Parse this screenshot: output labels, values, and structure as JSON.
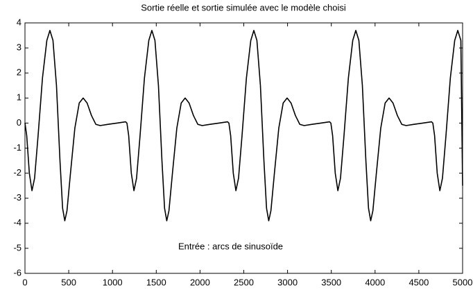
{
  "chart_data": {
    "type": "line",
    "title": "Sortie réelle et sortie simulée avec le modèle choisi",
    "annotation": "Entrée : arcs de sinusoïde",
    "x": [
      0,
      20,
      50,
      80,
      110,
      150,
      200,
      250,
      285,
      320,
      360,
      400,
      430,
      455,
      480,
      520,
      570,
      620,
      665,
      710,
      760,
      810,
      860,
      950,
      1050,
      1150,
      1165,
      1185,
      1215,
      1245,
      1275,
      1315,
      1365,
      1415,
      1450,
      1485,
      1525,
      1565,
      1595,
      1620,
      1645,
      1685,
      1735,
      1785,
      1830,
      1875,
      1925,
      1975,
      2025,
      2115,
      2215,
      2315,
      2330,
      2350,
      2380,
      2410,
      2440,
      2480,
      2530,
      2580,
      2615,
      2650,
      2690,
      2730,
      2760,
      2785,
      2810,
      2850,
      2900,
      2950,
      2995,
      3040,
      3090,
      3140,
      3190,
      3280,
      3380,
      3480,
      3495,
      3515,
      3545,
      3575,
      3605,
      3645,
      3695,
      3745,
      3780,
      3815,
      3855,
      3895,
      3925,
      3950,
      3975,
      4015,
      4065,
      4115,
      4160,
      4205,
      4255,
      4305,
      4355,
      4445,
      4545,
      4645,
      4660,
      4680,
      4710,
      4740,
      4770,
      4810,
      4860,
      4910,
      4945,
      4980,
      5000
    ],
    "series": [
      {
        "name": "sortie",
        "color": "#000000",
        "values": [
          0,
          -0.5,
          -2.0,
          -2.7,
          -2.2,
          -0.5,
          1.8,
          3.3,
          3.7,
          3.3,
          1.5,
          -1.5,
          -3.4,
          -3.9,
          -3.5,
          -2.0,
          -0.2,
          0.8,
          1.0,
          0.8,
          0.3,
          -0.05,
          -0.1,
          -0.05,
          0,
          0.05,
          0,
          -0.5,
          -2.0,
          -2.7,
          -2.2,
          -0.5,
          1.8,
          3.3,
          3.7,
          3.3,
          1.5,
          -1.5,
          -3.4,
          -3.9,
          -3.5,
          -2.0,
          -0.2,
          0.8,
          1.0,
          0.8,
          0.3,
          -0.05,
          -0.1,
          -0.05,
          0,
          0.05,
          0,
          -0.5,
          -2.0,
          -2.7,
          -2.2,
          -0.5,
          1.8,
          3.3,
          3.7,
          3.3,
          1.5,
          -1.5,
          -3.4,
          -3.9,
          -3.5,
          -2.0,
          -0.2,
          0.8,
          1.0,
          0.8,
          0.3,
          -0.05,
          -0.1,
          -0.05,
          0,
          0.05,
          0,
          -0.5,
          -2.0,
          -2.7,
          -2.2,
          -0.5,
          1.8,
          3.3,
          3.7,
          3.3,
          1.5,
          -1.5,
          -3.4,
          -3.9,
          -3.5,
          -2.0,
          -0.2,
          0.8,
          1.0,
          0.8,
          0.3,
          -0.05,
          -0.1,
          -0.05,
          0,
          0.05,
          0,
          -0.5,
          -2.0,
          -2.7,
          -2.2,
          -0.5,
          1.8,
          3.3,
          3.7,
          3.3,
          -2.5
        ]
      }
    ],
    "xlim": [
      0,
      5000
    ],
    "xticks": [
      0,
      500,
      1000,
      1500,
      2000,
      2500,
      3000,
      3500,
      4000,
      4500,
      5000
    ],
    "ylim": [
      -6,
      4
    ],
    "yticks": [
      -6,
      -5,
      -4,
      -3,
      -2,
      -1,
      0,
      1,
      2,
      3,
      4
    ]
  }
}
